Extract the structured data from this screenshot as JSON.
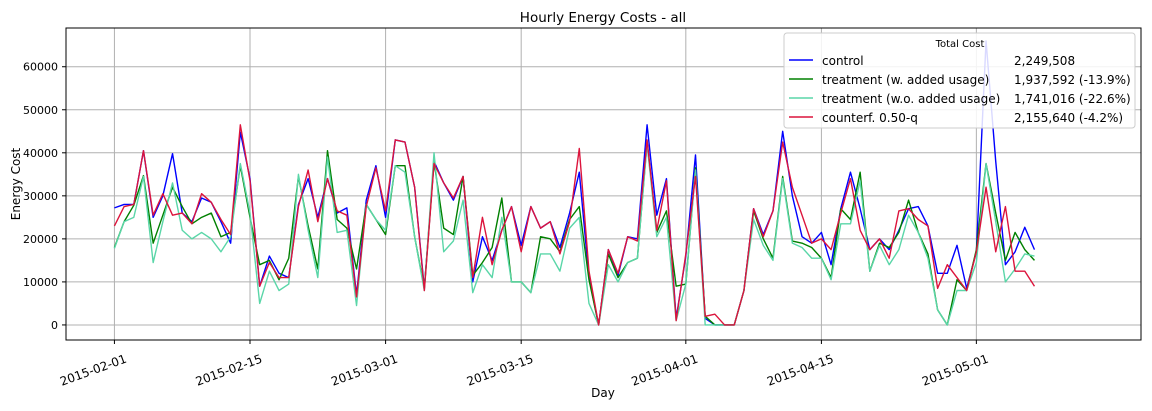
{
  "chart_data": {
    "type": "line",
    "title": "Hourly Energy Costs - all",
    "xlabel": "Day",
    "ylabel": "Energy Cost",
    "x_start": "2015-02-01",
    "x_range_days": [
      -5,
      106
    ],
    "ylim": [
      -3500,
      69000
    ],
    "yticks": [
      0,
      10000,
      20000,
      30000,
      40000,
      50000,
      60000
    ],
    "xticks": [
      {
        "label": "2015-02-01",
        "day": 0
      },
      {
        "label": "2015-02-15",
        "day": 14
      },
      {
        "label": "2015-03-01",
        "day": 28
      },
      {
        "label": "2015-03-15",
        "day": 42
      },
      {
        "label": "2015-04-01",
        "day": 59
      },
      {
        "label": "2015-04-15",
        "day": 73
      },
      {
        "label": "2015-05-01",
        "day": 89
      }
    ],
    "grid": true,
    "legend": {
      "position": "top-right",
      "title": "Total Cost",
      "entries": [
        {
          "label": "control",
          "value": "2,249,508"
        },
        {
          "label": "treatment (w. added usage)",
          "value": "1,937,592 (-13.9%)"
        },
        {
          "label": "treatment (w.o. added usage)",
          "value": "1,741,016 (-22.6%)"
        },
        {
          "label": "counterf. 0.50-q",
          "value": "2,155,640 (-4.2%)"
        }
      ]
    },
    "series": [
      {
        "name": "control",
        "color": "#0000ff",
        "values": [
          27200,
          28000,
          28000,
          40500,
          25000,
          30000,
          39800,
          26000,
          24000,
          29500,
          28500,
          24000,
          19000,
          44800,
          34000,
          9000,
          16000,
          12000,
          11000,
          28000,
          34000,
          25000,
          34000,
          26000,
          27200,
          7000,
          29000,
          37000,
          25000,
          43000,
          42500,
          32000,
          8500,
          38000,
          33000,
          29000,
          34500,
          10000,
          20500,
          15000,
          22000,
          27500,
          18500,
          27500,
          22500,
          24000,
          18000,
          26000,
          35500,
          11000,
          0,
          17500,
          11500,
          20500,
          20000,
          46500,
          25500,
          34000,
          1500,
          16000,
          39500,
          1500,
          0,
          0,
          0,
          8000,
          27000,
          21000,
          26500,
          45000,
          30000,
          20500,
          19000,
          21500,
          14000,
          27000,
          35500,
          27000,
          17500,
          20000,
          17500,
          22000,
          27000,
          27500,
          23000,
          12000,
          12000,
          18500,
          8500,
          17000,
          66000,
          38000,
          14000,
          17000,
          22700,
          17500
        ]
      },
      {
        "name": "treatment (w. added usage)",
        "color": "#008000",
        "values": [
          18000,
          24000,
          27800,
          34700,
          19000,
          25500,
          32000,
          27500,
          23500,
          25000,
          26000,
          20500,
          21500,
          37000,
          25000,
          14000,
          15000,
          10500,
          15500,
          34500,
          23000,
          13000,
          40500,
          24500,
          22500,
          13000,
          28000,
          24500,
          21000,
          37000,
          37000,
          20500,
          8500,
          38000,
          22500,
          21000,
          34500,
          11500,
          14500,
          18000,
          29500,
          10000,
          10000,
          7500,
          20500,
          20000,
          17000,
          24500,
          27500,
          10500,
          0,
          16500,
          11000,
          14500,
          15500,
          42500,
          21500,
          26500,
          9000,
          9500,
          36500,
          2000,
          0,
          0,
          0,
          8000,
          26500,
          20000,
          15500,
          34500,
          19500,
          19000,
          18000,
          15500,
          11000,
          27000,
          24500,
          35500,
          12500,
          19000,
          18000,
          21500,
          29000,
          21500,
          16500,
          3500,
          0,
          10500,
          8000,
          17500,
          37500,
          26000,
          15000,
          21500,
          17500,
          15000
        ]
      },
      {
        "name": "treatment (w.o. added usage)",
        "color": "#5ad6a8",
        "values": [
          17800,
          24000,
          25000,
          34500,
          14500,
          24000,
          33000,
          22000,
          20000,
          21500,
          20000,
          17000,
          20500,
          37500,
          26000,
          5000,
          12500,
          8000,
          9500,
          35000,
          22000,
          11000,
          39000,
          21500,
          22000,
          4500,
          28000,
          24500,
          22000,
          37000,
          35500,
          20500,
          8000,
          40000,
          17000,
          19500,
          29000,
          7500,
          14000,
          11000,
          25000,
          10000,
          10000,
          7500,
          16500,
          16500,
          12500,
          22500,
          25000,
          5000,
          0,
          14000,
          10000,
          14500,
          15500,
          42000,
          20500,
          25000,
          1000,
          9500,
          36000,
          0,
          0,
          0,
          0,
          8000,
          24500,
          18500,
          15000,
          34000,
          19000,
          18000,
          15500,
          15500,
          10500,
          23500,
          23500,
          33500,
          12500,
          18500,
          14000,
          17500,
          25500,
          21500,
          15500,
          3500,
          0,
          8000,
          8000,
          14500,
          37500,
          24000,
          10000,
          13000,
          16500,
          16000
        ]
      },
      {
        "name": "counterf. 0.50-q",
        "color": "#dc143c",
        "values": [
          23000,
          27500,
          28000,
          40500,
          25500,
          30500,
          25500,
          26000,
          23500,
          30500,
          28500,
          24500,
          21000,
          46500,
          33500,
          9000,
          14500,
          11000,
          11000,
          27500,
          36000,
          24000,
          34000,
          26500,
          25500,
          6500,
          27500,
          36500,
          26500,
          43000,
          42500,
          32000,
          8000,
          37500,
          33000,
          29500,
          34500,
          11000,
          25000,
          14000,
          22000,
          27500,
          17000,
          27500,
          22500,
          24000,
          16500,
          24000,
          41000,
          12500,
          0,
          17500,
          12000,
          20500,
          19500,
          43000,
          22000,
          33500,
          1000,
          16500,
          34500,
          2000,
          2500,
          0,
          0,
          8000,
          27000,
          20500,
          26500,
          42500,
          32000,
          25500,
          19000,
          20000,
          17500,
          26000,
          34000,
          22000,
          17500,
          20000,
          15500,
          26500,
          27000,
          24500,
          23000,
          8500,
          14000,
          11000,
          8000,
          17000,
          32000,
          17000,
          27500,
          12500,
          12500,
          9000
        ]
      }
    ]
  }
}
